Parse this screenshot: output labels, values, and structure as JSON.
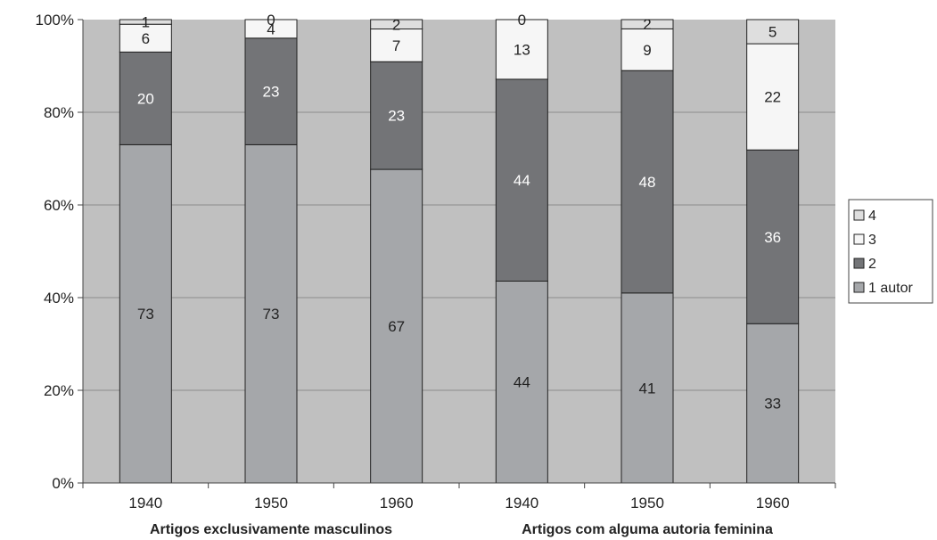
{
  "chart_data": {
    "type": "bar",
    "stacked": true,
    "percent_stacked": true,
    "title": "",
    "ylim": [
      0,
      100
    ],
    "yticks": [
      "0%",
      "20%",
      "40%",
      "60%",
      "80%",
      "100%"
    ],
    "grid": true,
    "legend_position": "right",
    "groups": [
      {
        "label": "Artigos exclusivamente masculinos",
        "categories": [
          "1940",
          "1950",
          "1960"
        ]
      },
      {
        "label": "Artigos com alguma autoria feminina",
        "categories": [
          "1940",
          "1950",
          "1960"
        ]
      }
    ],
    "categories": [
      "1940",
      "1950",
      "1960",
      "1940",
      "1950",
      "1960"
    ],
    "series": [
      {
        "name": "1 autor",
        "color": "#a5a7aa",
        "label_color": "#222222",
        "values": [
          73,
          73,
          67,
          44,
          41,
          33
        ]
      },
      {
        "name": "2",
        "color": "#737477",
        "label_color": "#ffffff",
        "values": [
          20,
          23,
          23,
          44,
          48,
          36
        ]
      },
      {
        "name": "3",
        "color": "#f6f6f6",
        "label_color": "#222222",
        "values": [
          6,
          4,
          7,
          13,
          9,
          22
        ]
      },
      {
        "name": "4",
        "color": "#dedede",
        "label_color": "#222222",
        "values": [
          1,
          0,
          2,
          0,
          2,
          5
        ]
      }
    ]
  }
}
